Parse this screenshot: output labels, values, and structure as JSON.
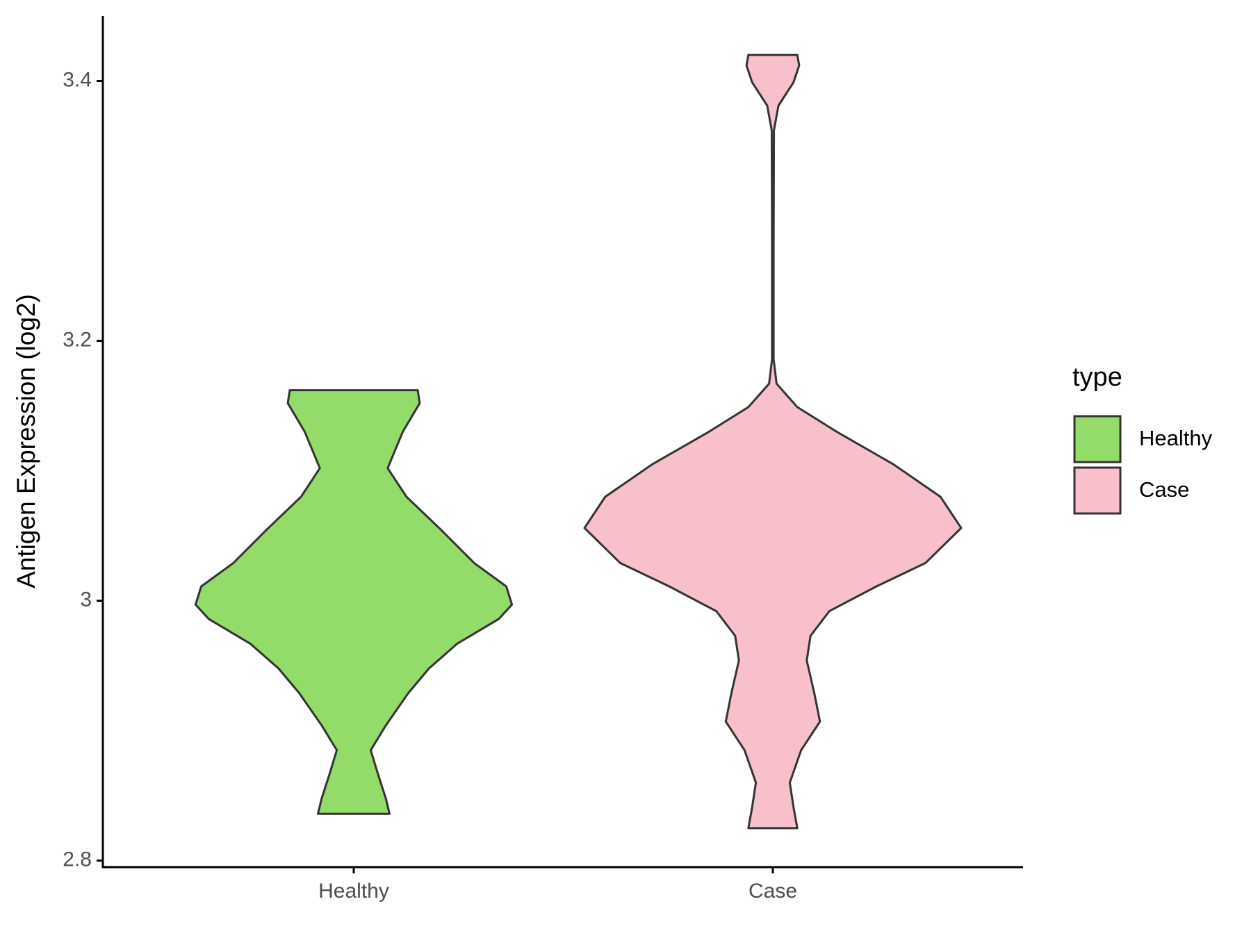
{
  "chart_data": {
    "type": "violin",
    "y_label": "Antigen Expression (log2)",
    "categories": [
      "Healthy",
      "Case"
    ],
    "legend_title": "type",
    "ylim": [
      2.795,
      3.45
    ],
    "yticks": [
      2.8,
      3.0,
      3.2,
      3.4
    ],
    "series": [
      {
        "name": "Healthy",
        "color": "#93dc6a",
        "y": [
          3.162,
          3.152,
          3.13,
          3.102,
          3.08,
          3.055,
          3.029,
          3.011,
          2.997,
          2.986,
          2.967,
          2.948,
          2.929,
          2.904,
          2.885,
          2.866,
          2.848,
          2.836
        ],
        "density": [
          0.34,
          0.35,
          0.26,
          0.18,
          0.28,
          0.46,
          0.64,
          0.81,
          0.84,
          0.77,
          0.55,
          0.4,
          0.29,
          0.17,
          0.09,
          0.13,
          0.17,
          0.19
        ]
      },
      {
        "name": "Case",
        "color": "#f7c0cb",
        "y": [
          3.42,
          3.412,
          3.399,
          3.381,
          3.362,
          3.274,
          3.186,
          3.167,
          3.149,
          3.13,
          3.105,
          3.08,
          3.056,
          3.029,
          3.011,
          2.992,
          2.973,
          2.954,
          2.929,
          2.907,
          2.885,
          2.86,
          2.841,
          2.825
        ],
        "density": [
          0.13,
          0.14,
          0.11,
          0.03,
          0.006,
          0.004,
          0.004,
          0.02,
          0.13,
          0.34,
          0.64,
          0.89,
          1.0,
          0.81,
          0.55,
          0.3,
          0.2,
          0.18,
          0.22,
          0.25,
          0.15,
          0.09,
          0.11,
          0.13
        ]
      }
    ]
  }
}
